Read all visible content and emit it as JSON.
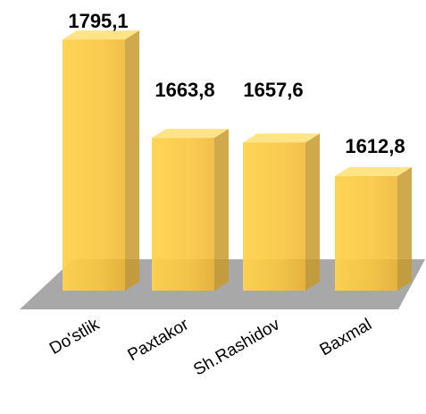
{
  "chart_data": {
    "type": "bar3d",
    "categories": [
      "Do'stlik",
      "Paxtakor",
      "Sh.Rashidov",
      "Baxmal"
    ],
    "values": [
      1795.1,
      1663.8,
      1657.6,
      1612.8
    ],
    "value_labels": [
      "1795,1",
      "1663,8",
      "1657,6",
      "1612,8"
    ],
    "color": "#f7c13c",
    "ylim": [
      1460,
      1800
    ]
  }
}
